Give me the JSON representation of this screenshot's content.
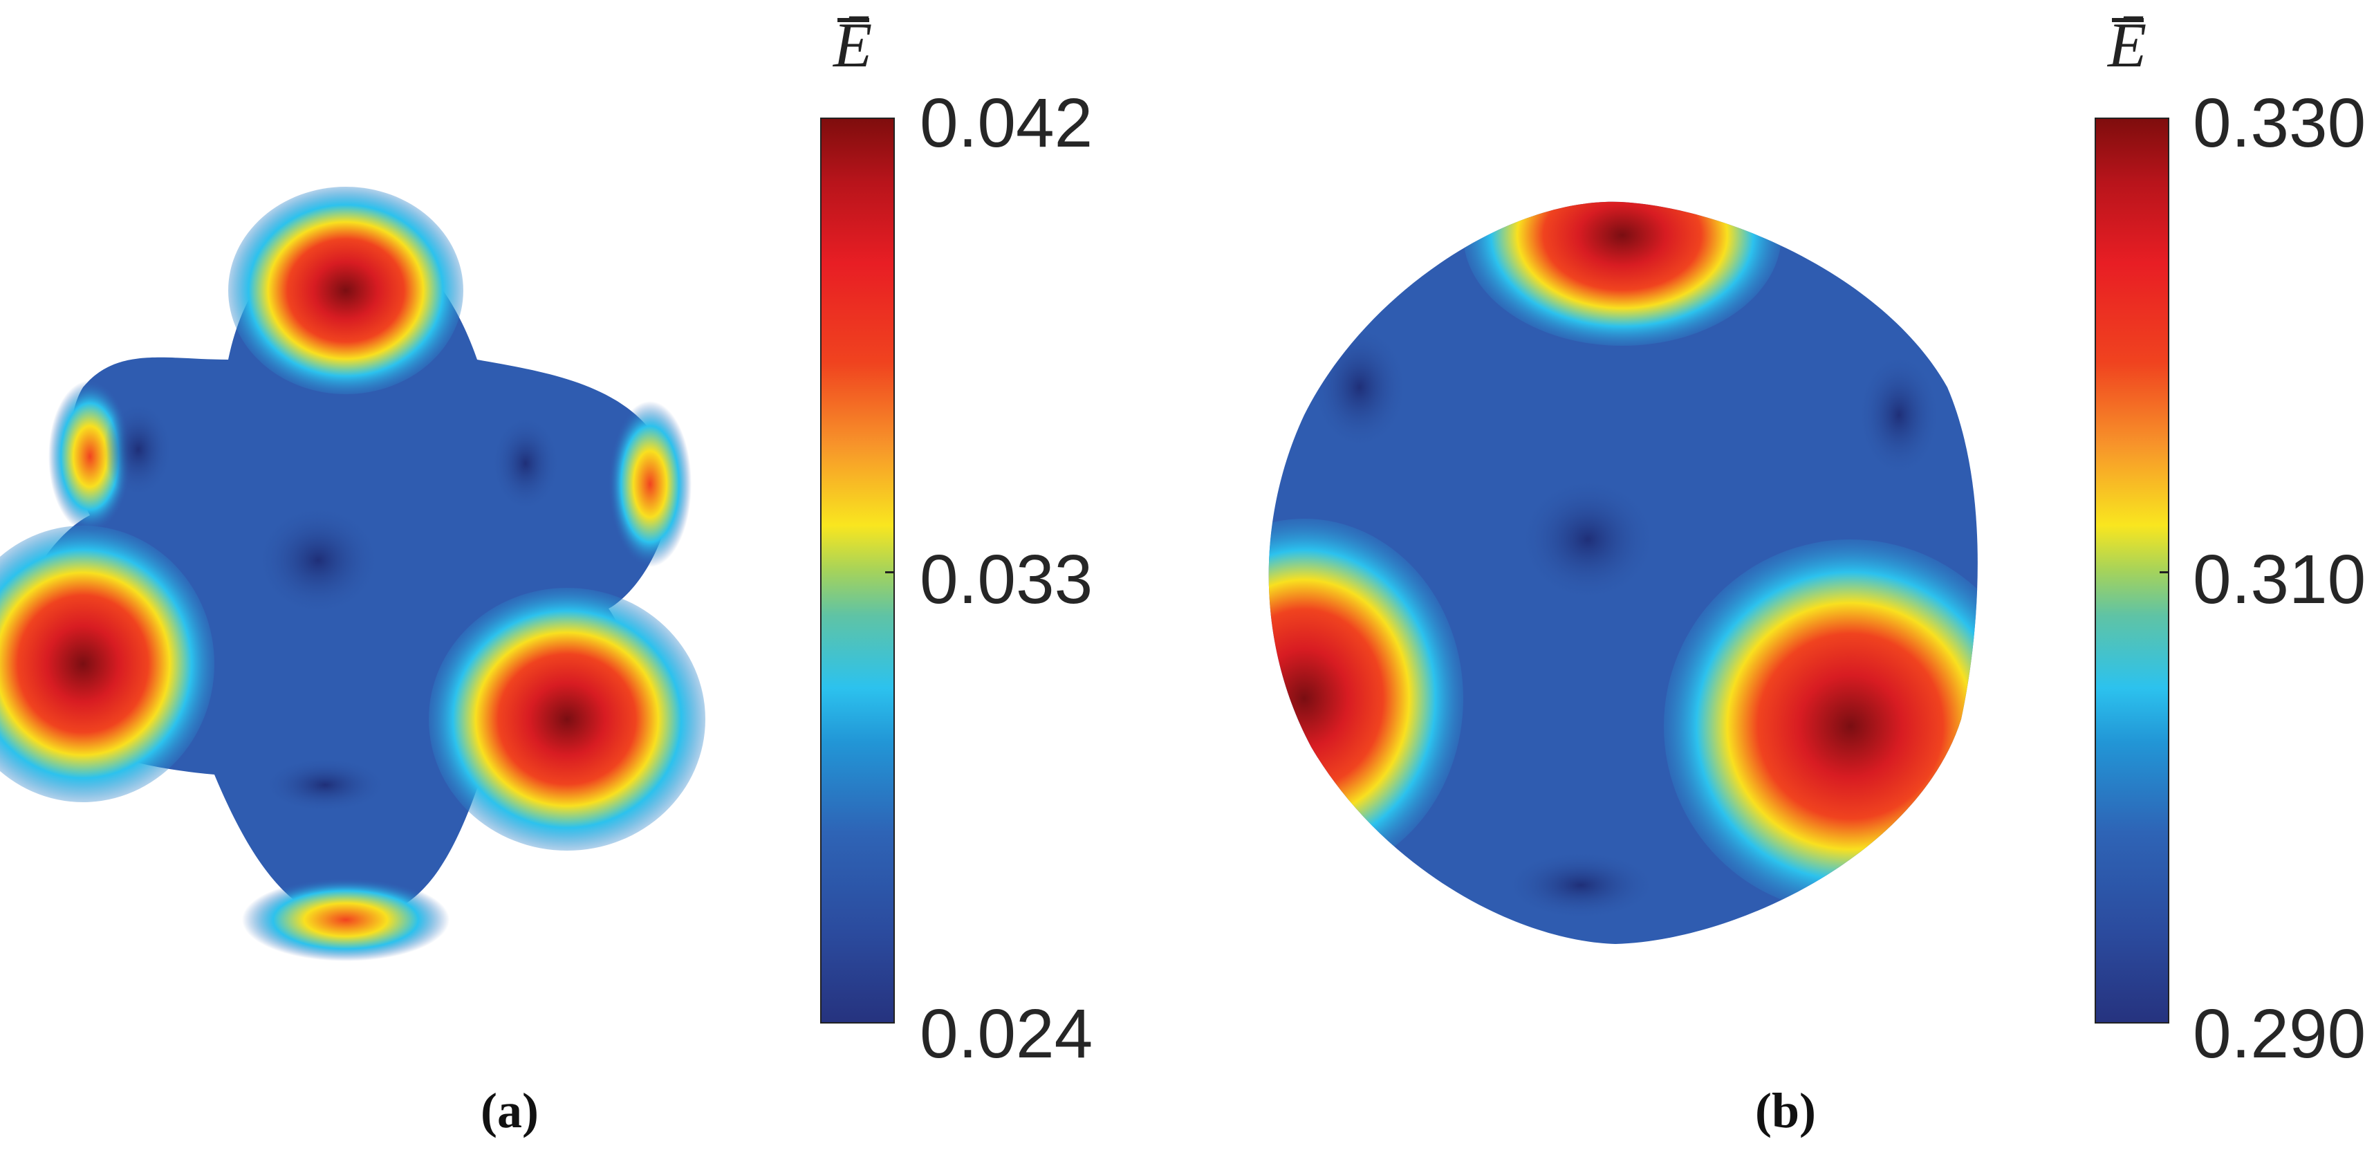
{
  "chart_data": [
    {
      "type": "heatmap",
      "panel_label": "(a)",
      "colorbar": {
        "title": "Ē",
        "min": 0.024,
        "max": 0.042,
        "ticks": [
          "0.042",
          "0.033",
          "0.024"
        ],
        "colormap": [
          "#7f0d0d",
          "#e81e24",
          "#f7932a",
          "#f9e61f",
          "#5fc3a5",
          "#2cc2ee",
          "#2e64b6",
          "#26337f"
        ]
      }
    },
    {
      "type": "heatmap",
      "panel_label": "(b)",
      "colorbar": {
        "title": "Ē",
        "min": 0.29,
        "max": 0.33,
        "ticks": [
          "0.330",
          "0.310",
          "0.290"
        ],
        "colormap": [
          "#7f0d0d",
          "#e81e24",
          "#f7932a",
          "#f9e61f",
          "#5fc3a5",
          "#2cc2ee",
          "#2e64b6",
          "#26337f"
        ]
      }
    }
  ]
}
